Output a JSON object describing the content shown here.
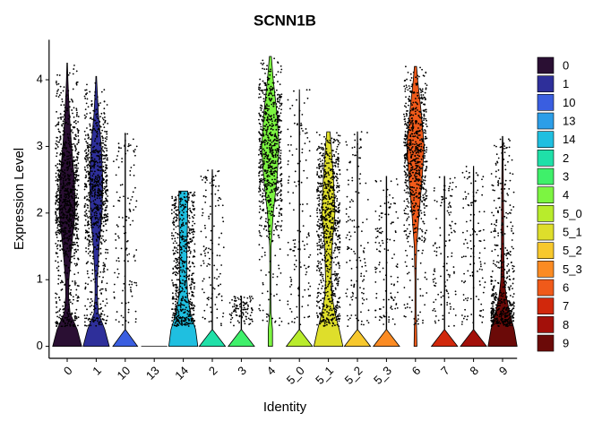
{
  "chart_data": {
    "type": "violin",
    "title": "SCNN1B",
    "x_label": "Identity",
    "y_label": "Expression Level",
    "categories": [
      "0",
      "1",
      "10",
      "13",
      "14",
      "2",
      "3",
      "4",
      "5_0",
      "5_1",
      "5_2",
      "5_3",
      "6",
      "7",
      "8",
      "9"
    ],
    "colors": [
      "#2a0f33",
      "#2e2f9a",
      "#3a5ee0",
      "#2c9ee8",
      "#1fbfe0",
      "#1fe0a8",
      "#3ff06a",
      "#7cf541",
      "#b8ec2c",
      "#dede2b",
      "#f7c82c",
      "#fb8b23",
      "#f05a1a",
      "#d1280c",
      "#a3100a",
      "#6b0a08"
    ],
    "ylim": [
      -0.18,
      4.6
    ],
    "yticks": [
      0,
      1,
      2,
      3,
      4
    ],
    "legend": "right",
    "density_levels": [
      0,
      0.25,
      0.5,
      0.75,
      1,
      1.5,
      2,
      2.5,
      3,
      3.5,
      4,
      4.4
    ],
    "violins": [
      {
        "max": 4.25,
        "density": [
          1.0,
          0.7,
          0.2,
          0.1,
          0.12,
          0.3,
          0.55,
          0.5,
          0.3,
          0.15,
          0.05,
          0
        ]
      },
      {
        "max": 4.05,
        "density": [
          0.9,
          0.6,
          0.15,
          0.08,
          0.08,
          0.2,
          0.4,
          0.45,
          0.35,
          0.15,
          0.03,
          0
        ]
      },
      {
        "max": 3.2,
        "density": [
          0.85,
          0.02,
          0.02,
          0.02,
          0.02,
          0.02,
          0.02,
          0.02,
          0.02,
          0,
          0,
          0
        ]
      },
      {
        "max": 0,
        "density": [
          0.9,
          0,
          0,
          0,
          0,
          0,
          0,
          0,
          0,
          0,
          0,
          0
        ]
      },
      {
        "max": 2.33,
        "density": [
          1.0,
          0.85,
          0.5,
          0.3,
          0.25,
          0.25,
          0.3,
          0.3,
          0,
          0,
          0,
          0
        ]
      },
      {
        "max": 2.65,
        "density": [
          0.9,
          0.02,
          0.02,
          0.02,
          0.02,
          0.02,
          0.02,
          0.02,
          0,
          0,
          0,
          0
        ]
      },
      {
        "max": 0.75,
        "density": [
          0.9,
          0.02,
          0.02,
          0.02,
          0,
          0,
          0,
          0,
          0,
          0,
          0,
          0
        ]
      },
      {
        "max": 4.35,
        "density": [
          0.15,
          0.15,
          0.05,
          0.03,
          0.03,
          0.05,
          0.2,
          0.45,
          0.6,
          0.45,
          0.2,
          0.05
        ]
      },
      {
        "max": 3.85,
        "density": [
          0.9,
          0.02,
          0.02,
          0.02,
          0.02,
          0.02,
          0.02,
          0.02,
          0.02,
          0.02,
          0,
          0
        ]
      },
      {
        "max": 3.22,
        "density": [
          1.0,
          0.75,
          0.45,
          0.25,
          0.2,
          0.25,
          0.45,
          0.35,
          0.2,
          0,
          0,
          0
        ]
      },
      {
        "max": 3.22,
        "density": [
          0.9,
          0.02,
          0.02,
          0.02,
          0.02,
          0.02,
          0.02,
          0.02,
          0.02,
          0,
          0,
          0
        ]
      },
      {
        "max": 2.55,
        "density": [
          0.9,
          0.02,
          0.02,
          0.02,
          0.02,
          0.02,
          0.02,
          0.02,
          0,
          0,
          0,
          0
        ]
      },
      {
        "max": 4.2,
        "density": [
          0.1,
          0.08,
          0.04,
          0.04,
          0.04,
          0.08,
          0.25,
          0.45,
          0.6,
          0.4,
          0.15,
          0
        ]
      },
      {
        "max": 2.55,
        "density": [
          0.9,
          0.02,
          0.02,
          0.02,
          0.02,
          0.02,
          0.02,
          0.02,
          0,
          0,
          0,
          0
        ]
      },
      {
        "max": 2.7,
        "density": [
          0.9,
          0.02,
          0.02,
          0.02,
          0.02,
          0.02,
          0.02,
          0.02,
          0,
          0,
          0,
          0
        ]
      },
      {
        "max": 3.15,
        "density": [
          1.0,
          0.8,
          0.5,
          0.25,
          0.12,
          0.08,
          0.07,
          0.05,
          0.03,
          0,
          0,
          0
        ]
      }
    ]
  }
}
